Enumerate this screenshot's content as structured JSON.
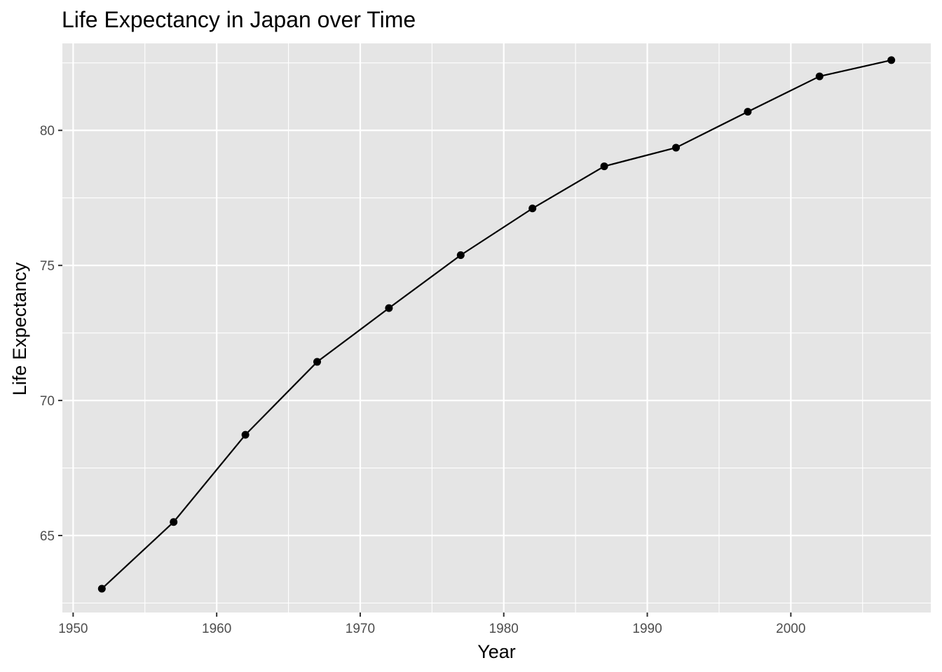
{
  "chart_data": {
    "type": "line",
    "title": "Life Expectancy in Japan over Time",
    "xlabel": "Year",
    "ylabel": "Life Expectancy",
    "xlim": [
      1949.25,
      2009.75
    ],
    "ylim": [
      62.15,
      83.22
    ],
    "x_ticks": [
      1950,
      1960,
      1970,
      1980,
      1990,
      2000
    ],
    "x_minor_ticks": [
      1955,
      1965,
      1975,
      1985,
      1995,
      2005
    ],
    "y_ticks": [
      65,
      70,
      75,
      80
    ],
    "y_minor_ticks": [
      62.5,
      67.5,
      72.5,
      77.5,
      82.5
    ],
    "grid": true,
    "legend": "none",
    "series": [
      {
        "x": [
          1952,
          1957,
          1962,
          1967,
          1972,
          1977,
          1982,
          1987,
          1992,
          1997,
          2002,
          2007
        ],
        "y": [
          63.03,
          65.5,
          68.73,
          71.43,
          73.42,
          75.38,
          77.11,
          78.67,
          79.36,
          80.69,
          82.0,
          82.6
        ]
      }
    ],
    "colors": {
      "panel_background": "#e5e5e5",
      "grid": "#ffffff",
      "line": "#000000",
      "point": "#000000",
      "tick_text": "#4d4d4d",
      "tick_mark": "#333333"
    }
  }
}
